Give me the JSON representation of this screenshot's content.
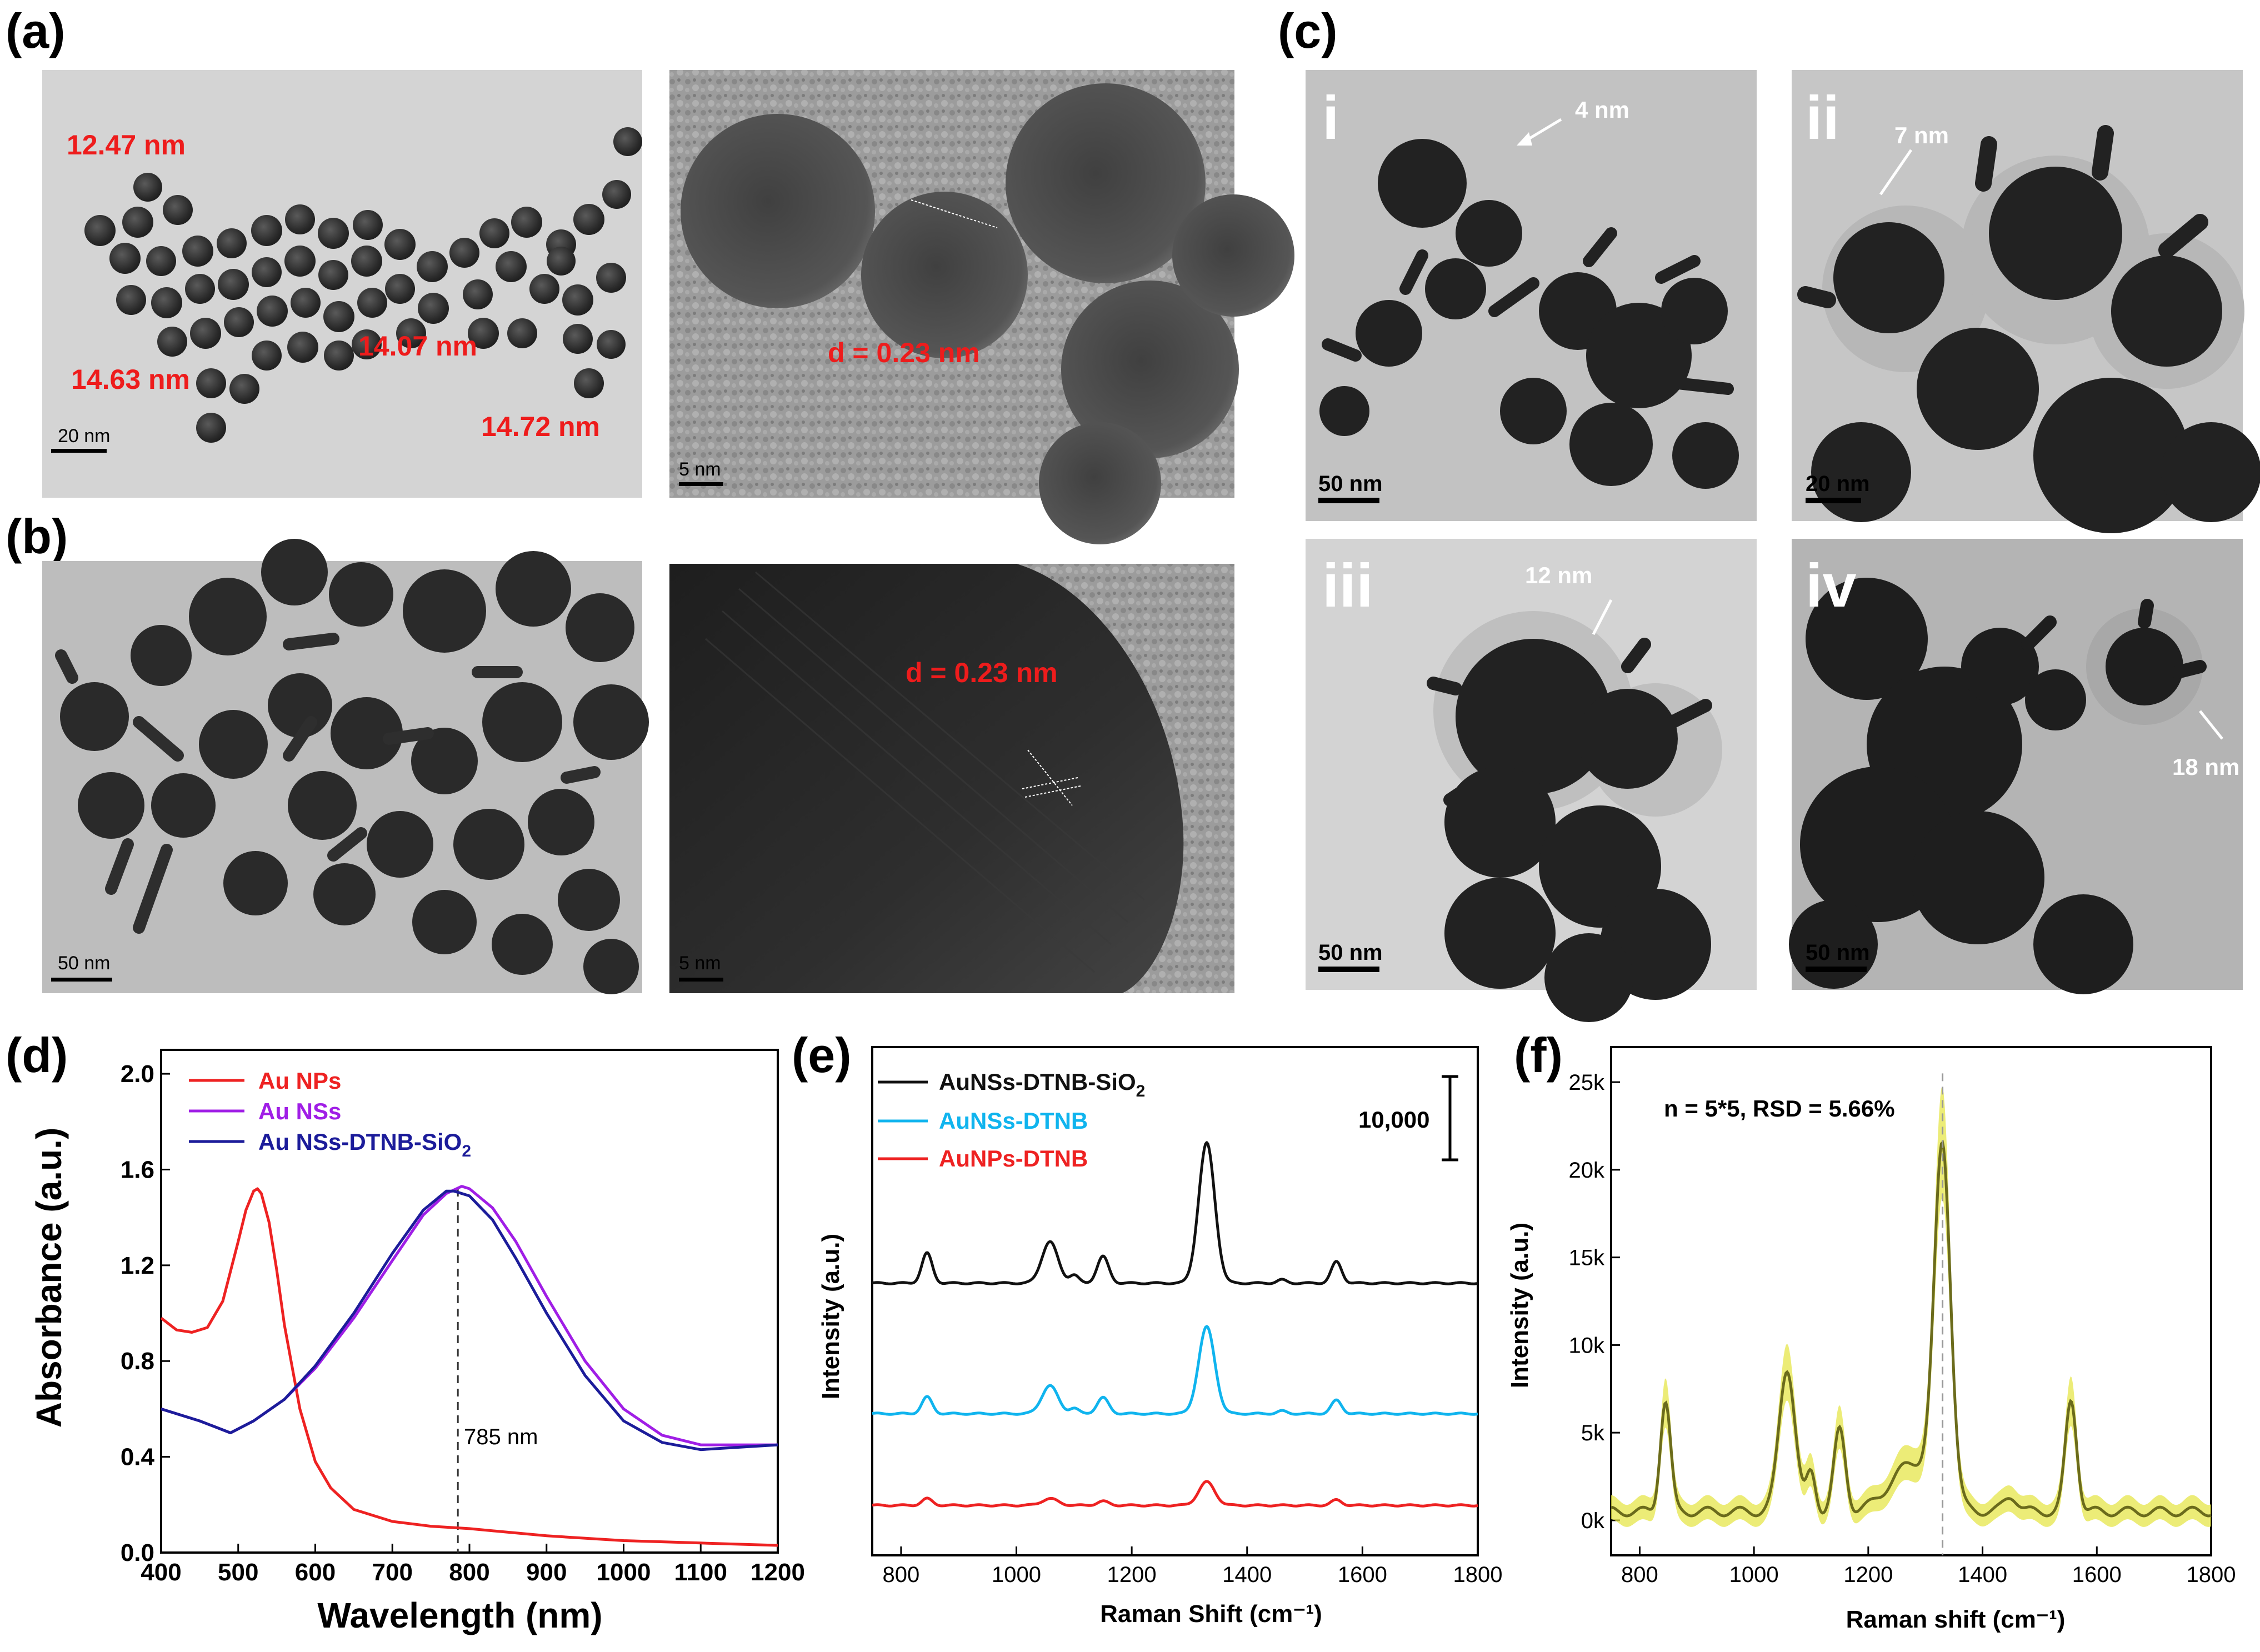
{
  "figure": {
    "panels": {
      "a": "(a)",
      "b": "(b)",
      "c": "(c)",
      "d": "(d)",
      "e": "(e)",
      "f": "(f)"
    },
    "a_left": {
      "labels": [
        "12.47 nm",
        "14.63 nm",
        "14.07 nm",
        "14.72 nm"
      ],
      "scale_bar": "20 nm"
    },
    "a_right": {
      "label": "d = 0.23 nm",
      "scale_bar": "5 nm"
    },
    "b_left": {
      "scale_bar": "50 nm"
    },
    "b_right": {
      "label": "d = 0.23 nm",
      "scale_bar": "5 nm"
    },
    "c": {
      "i": {
        "numeral": "i",
        "thickness": "4 nm",
        "scale_bar": "50 nm"
      },
      "ii": {
        "numeral": "ii",
        "thickness": "7 nm",
        "scale_bar": "20 nm"
      },
      "iii": {
        "numeral": "iii",
        "thickness": "12 nm",
        "scale_bar": "50 nm"
      },
      "iv": {
        "numeral": "iv",
        "thickness": "18 nm",
        "scale_bar": "50 nm"
      }
    },
    "colors": {
      "red": "#ee2222",
      "purple": "#a01ee6",
      "navy": "#1c1c9a",
      "cyan": "#10b4ee",
      "olive": "#6b6b1c",
      "yellow": "#e6e64a",
      "black": "#111111"
    }
  },
  "chart_data": [
    {
      "id": "d",
      "type": "line",
      "xlabel": "Wavelength (nm)",
      "ylabel": "Absorbance (a.u.)",
      "xlim": [
        400,
        1200
      ],
      "ylim": [
        0.0,
        2.1
      ],
      "xticks": [
        400,
        500,
        600,
        700,
        800,
        900,
        1000,
        1100,
        1200
      ],
      "yticks": [
        "0.0",
        "0.4",
        "0.8",
        "1.2",
        "1.6",
        "2.0"
      ],
      "ytick_values": [
        0.0,
        0.4,
        0.8,
        1.2,
        1.6,
        2.0
      ],
      "legend": {
        "placement": "top-left"
      },
      "annotation": {
        "text": "785 nm",
        "x": 785
      },
      "series": [
        {
          "name": "Au NPs",
          "color": "#ee2222",
          "x": [
            400,
            420,
            440,
            460,
            480,
            500,
            510,
            520,
            525,
            530,
            540,
            550,
            560,
            580,
            600,
            620,
            650,
            700,
            750,
            800,
            900,
            1000,
            1100,
            1200
          ],
          "y": [
            0.98,
            0.93,
            0.92,
            0.94,
            1.05,
            1.3,
            1.43,
            1.51,
            1.52,
            1.5,
            1.38,
            1.18,
            0.95,
            0.6,
            0.38,
            0.27,
            0.18,
            0.13,
            0.11,
            0.1,
            0.07,
            0.05,
            0.04,
            0.03
          ]
        },
        {
          "name": "Au NSs",
          "color": "#a01ee6",
          "x": [
            400,
            450,
            490,
            520,
            560,
            600,
            650,
            700,
            740,
            770,
            790,
            800,
            830,
            860,
            900,
            950,
            1000,
            1050,
            1100,
            1150,
            1200
          ],
          "y": [
            0.6,
            0.55,
            0.5,
            0.55,
            0.64,
            0.77,
            0.98,
            1.22,
            1.41,
            1.5,
            1.53,
            1.52,
            1.44,
            1.3,
            1.07,
            0.8,
            0.6,
            0.49,
            0.45,
            0.45,
            0.45
          ]
        },
        {
          "name": "Au NSs-DTNB-SiO",
          "subscript": "2",
          "color": "#1c1c9a",
          "x": [
            400,
            450,
            490,
            520,
            560,
            600,
            650,
            700,
            740,
            770,
            780,
            800,
            830,
            860,
            900,
            950,
            1000,
            1050,
            1100,
            1150,
            1200
          ],
          "y": [
            0.6,
            0.55,
            0.5,
            0.55,
            0.64,
            0.78,
            1.0,
            1.25,
            1.43,
            1.51,
            1.51,
            1.49,
            1.39,
            1.23,
            1.0,
            0.74,
            0.55,
            0.46,
            0.43,
            0.44,
            0.45
          ]
        }
      ]
    },
    {
      "id": "e",
      "type": "line",
      "xlabel": "Raman Shift (cm⁻¹)",
      "ylabel": "Intensity (a.u.)",
      "xlim": [
        750,
        1800
      ],
      "xticks": [
        800,
        1000,
        1200,
        1400,
        1600,
        1800
      ],
      "scale_label": "10,000",
      "legend": {
        "placement": "top-left"
      },
      "peaks": [
        {
          "pos": 845,
          "width": 9
        },
        {
          "pos": 1058,
          "width": 14
        },
        {
          "pos": 1100,
          "width": 8
        },
        {
          "pos": 1150,
          "width": 10
        },
        {
          "pos": 1330,
          "width": 14
        },
        {
          "pos": 1460,
          "width": 8
        },
        {
          "pos": 1555,
          "width": 9
        }
      ],
      "series": [
        {
          "name": "AuNSs-DTNB-SiO",
          "subscript": "2",
          "color": "#111111",
          "baseline": 1.0,
          "amps": [
            0.45,
            0.62,
            0.12,
            0.4,
            2.1,
            0.05,
            0.32
          ]
        },
        {
          "name": "AuNSs-DTNB",
          "color": "#10b4ee",
          "baseline": 0.0,
          "amps": [
            0.25,
            0.42,
            0.08,
            0.24,
            1.3,
            0.04,
            0.2
          ]
        },
        {
          "name": "AuNPs-DTNB",
          "color": "#ee2222",
          "baseline": -1.0,
          "amps": [
            0.1,
            0.1,
            0.0,
            0.06,
            0.35,
            0.0,
            0.08
          ]
        }
      ]
    },
    {
      "id": "f",
      "type": "area",
      "xlabel": "Raman shift (cm⁻¹)",
      "ylabel": "Intensity (a.u.)",
      "xlim": [
        750,
        1800
      ],
      "ylim": [
        -2000,
        27000
      ],
      "xticks": [
        800,
        1000,
        1200,
        1400,
        1600,
        1800
      ],
      "yticks": [
        "0k",
        "5k",
        "10k",
        "15k",
        "20k",
        "25k"
      ],
      "ytick_values": [
        0,
        5000,
        10000,
        15000,
        20000,
        25000
      ],
      "annotation": "n = 5*5, RSD = 5.66%",
      "marker_line_x": 1330,
      "peaks": [
        {
          "pos": 845,
          "width": 9,
          "amp": 6300
        },
        {
          "pos": 1058,
          "width": 14,
          "amp": 8200
        },
        {
          "pos": 1100,
          "width": 8,
          "amp": 2200
        },
        {
          "pos": 1150,
          "width": 10,
          "amp": 4600
        },
        {
          "pos": 1280,
          "width": 40,
          "amp": 2800
        },
        {
          "pos": 1330,
          "width": 14,
          "amp": 19800
        },
        {
          "pos": 1450,
          "width": 12,
          "amp": 900
        },
        {
          "pos": 1555,
          "width": 10,
          "amp": 6300
        }
      ]
    }
  ]
}
